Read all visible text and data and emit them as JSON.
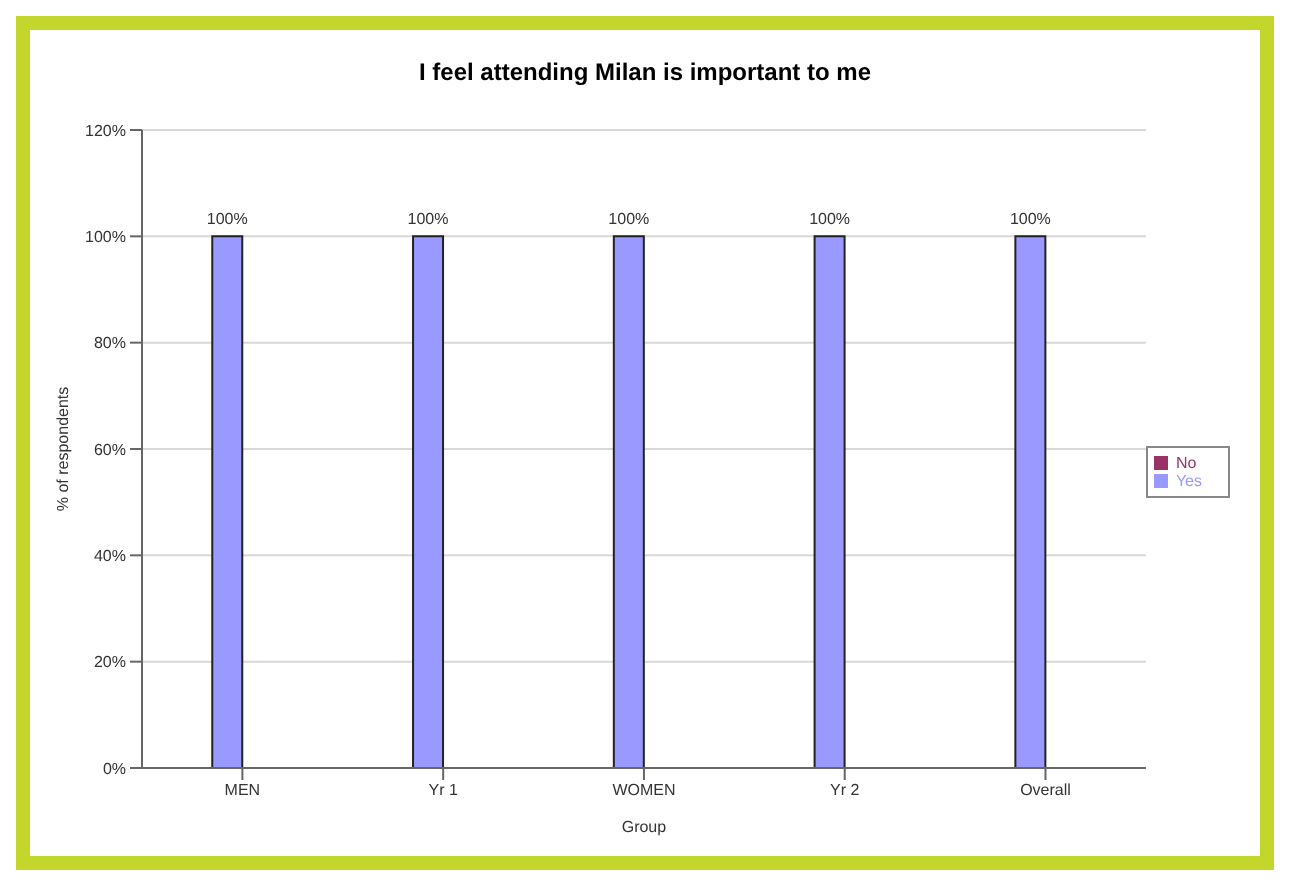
{
  "chart_data": {
    "type": "bar",
    "title": "I feel attending Milan is important to me",
    "xlabel": "Group",
    "ylabel": "% of respondents",
    "categories": [
      "MEN",
      "Yr 1",
      "WOMEN",
      "Yr 2",
      "Overall"
    ],
    "series": [
      {
        "name": "Yes",
        "color": "#9999ff",
        "values": [
          100,
          100,
          100,
          100,
          100
        ],
        "value_labels": [
          "100%",
          "100%",
          "100%",
          "100%",
          "100%"
        ]
      },
      {
        "name": "No",
        "color": "#993366",
        "values": [
          0,
          0,
          0,
          0,
          0
        ]
      }
    ],
    "ylim": [
      0,
      120
    ],
    "yticks": [
      {
        "value": 0,
        "label": "0%"
      },
      {
        "value": 20,
        "label": "20%"
      },
      {
        "value": 40,
        "label": "40%"
      },
      {
        "value": 60,
        "label": "60%"
      },
      {
        "value": 80,
        "label": "80%"
      },
      {
        "value": 100,
        "label": "100%"
      },
      {
        "value": 120,
        "label": "120%"
      }
    ],
    "grid": "y",
    "legend": "right"
  }
}
